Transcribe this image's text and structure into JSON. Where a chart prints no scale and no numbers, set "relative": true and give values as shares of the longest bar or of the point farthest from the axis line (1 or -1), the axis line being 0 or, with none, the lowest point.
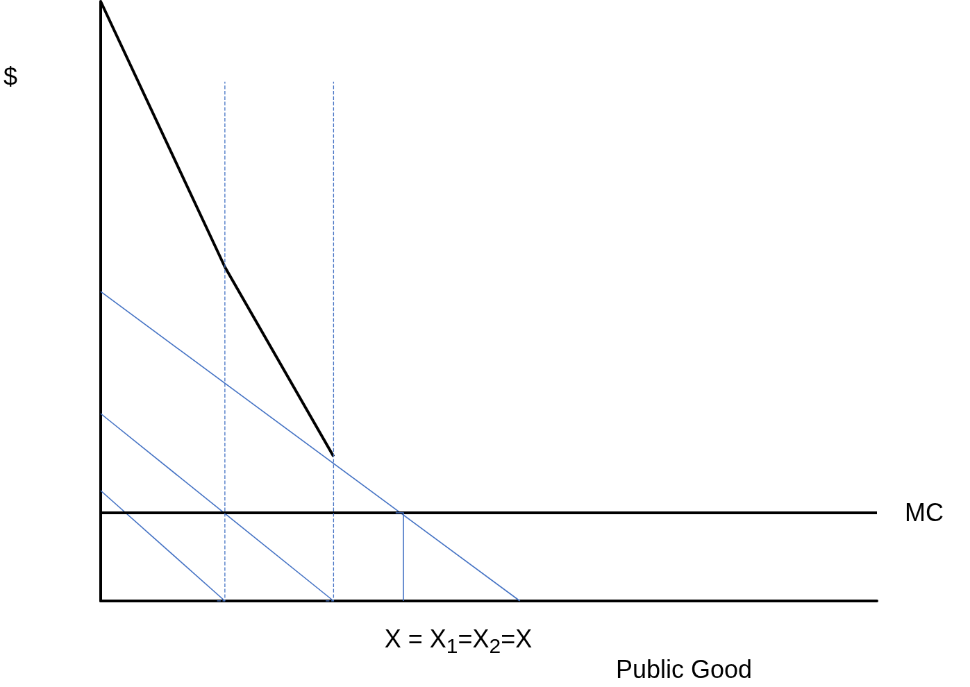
{
  "chart_data": {
    "type": "line",
    "relative": true,
    "ylabel": "$",
    "xlabel": "Public Good",
    "marker": "none",
    "grid": false,
    "legend": false,
    "tick_labels": false,
    "annotations": [
      "X = X$_{1}$=X$_{2}$=X"
    ],
    "categories": [
      null,
      null,
      null,
      null,
      null,
      null,
      null,
      null,
      null,
      null,
      null,
      null,
      null,
      null,
      null,
      null,
      null,
      null,
      null,
      null,
      null,
      null,
      null,
      null,
      null,
      null,
      null,
      null,
      null,
      null,
      null,
      null,
      null,
      null,
      null,
      null,
      null,
      null,
      null,
      null,
      null,
      null,
      null,
      null,
      null,
      null,
      null,
      null,
      null,
      null,
      null,
      null,
      null,
      null,
      null,
      null,
      null,
      null,
      null,
      null,
      null,
      null,
      null,
      null,
      null,
      null,
      null,
      null,
      null,
      null,
      null,
      null,
      null,
      null,
      null,
      null,
      null,
      null,
      null,
      null,
      null,
      null,
      null,
      null,
      null,
      null,
      null,
      null,
      null,
      null,
      null,
      null,
      null,
      null,
      null,
      null,
      null,
      null,
      null,
      null,
      null
    ],
    "series": [
      {
        "color": "#000000",
        "values": [
          1,
          null,
          null,
          null,
          null,
          null,
          null,
          null,
          null,
          null,
          null,
          null,
          null,
          null,
          null,
          null,
          0.557,
          null,
          null,
          null,
          null,
          null,
          null,
          null,
          null,
          null,
          null,
          null,
          null,
          null,
          0.241,
          null,
          null,
          null,
          null,
          null,
          null,
          null,
          null,
          null,
          null,
          null,
          null,
          null,
          null,
          null,
          null,
          null,
          null,
          null,
          null,
          null,
          null,
          null,
          null,
          null,
          null,
          null,
          null,
          null,
          null,
          null,
          null,
          null,
          null,
          null,
          null,
          null,
          null,
          null,
          null,
          null,
          null,
          null,
          null,
          null,
          null,
          null,
          null,
          null,
          null,
          null,
          null,
          null,
          null,
          null,
          null,
          null,
          null,
          null,
          null,
          null,
          null,
          null,
          null,
          null,
          null,
          null,
          null,
          null,
          null
        ]
      },
      {
        "color": "#4472c4",
        "values": [
          0.516,
          null,
          null,
          null,
          null,
          null,
          null,
          null,
          null,
          null,
          null,
          null,
          null,
          null,
          null,
          null,
          null,
          null,
          null,
          null,
          null,
          null,
          null,
          null,
          null,
          null,
          null,
          null,
          null,
          null,
          null,
          null,
          null,
          null,
          null,
          null,
          null,
          null,
          null,
          null,
          null,
          null,
          null,
          null,
          null,
          null,
          null,
          null,
          null,
          null,
          null,
          null,
          null,
          null,
          0,
          null,
          null,
          null,
          null,
          null,
          null,
          null,
          null,
          null,
          null,
          null,
          null,
          null,
          null,
          null,
          null,
          null,
          null,
          null,
          null,
          null,
          null,
          null,
          null,
          null,
          null,
          null,
          null,
          null,
          null,
          null,
          null,
          null,
          null,
          null,
          null,
          null,
          null,
          null,
          null,
          null,
          null,
          null,
          null,
          null,
          null
        ]
      },
      {
        "color": "#4472c4",
        "values": [
          0.3125,
          null,
          null,
          null,
          null,
          null,
          null,
          null,
          null,
          null,
          null,
          null,
          null,
          null,
          null,
          null,
          null,
          null,
          null,
          null,
          null,
          null,
          null,
          null,
          null,
          null,
          null,
          null,
          null,
          null,
          0,
          null,
          null,
          null,
          null,
          null,
          null,
          null,
          null,
          null,
          null,
          null,
          null,
          null,
          null,
          null,
          null,
          null,
          null,
          null,
          null,
          null,
          null,
          null,
          null,
          null,
          null,
          null,
          null,
          null,
          null,
          null,
          null,
          null,
          null,
          null,
          null,
          null,
          null,
          null,
          null,
          null,
          null,
          null,
          null,
          null,
          null,
          null,
          null,
          null,
          null,
          null,
          null,
          null,
          null,
          null,
          null,
          null,
          null,
          null,
          null,
          null,
          null,
          null,
          null,
          null,
          null,
          null,
          null,
          null,
          null
        ]
      },
      {
        "color": "#4472c4",
        "values": [
          0.184,
          null,
          null,
          null,
          null,
          null,
          null,
          null,
          null,
          null,
          null,
          null,
          null,
          null,
          null,
          null,
          0,
          null,
          null,
          null,
          null,
          null,
          null,
          null,
          null,
          null,
          null,
          null,
          null,
          null,
          null,
          null,
          null,
          null,
          null,
          null,
          null,
          null,
          null,
          null,
          null,
          null,
          null,
          null,
          null,
          null,
          null,
          null,
          null,
          null,
          null,
          null,
          null,
          null,
          null,
          null,
          null,
          null,
          null,
          null,
          null,
          null,
          null,
          null,
          null,
          null,
          null,
          null,
          null,
          null,
          null,
          null,
          null,
          null,
          null,
          null,
          null,
          null,
          null,
          null,
          null,
          null,
          null,
          null,
          null,
          null,
          null,
          null,
          null,
          null,
          null,
          null,
          null,
          null,
          null,
          null,
          null,
          null,
          null,
          null,
          null
        ]
      },
      {
        "name": "MC",
        "color": "#000000",
        "values": [
          0.147,
          null,
          null,
          null,
          null,
          null,
          null,
          null,
          null,
          null,
          null,
          null,
          null,
          null,
          null,
          null,
          null,
          null,
          null,
          null,
          null,
          null,
          null,
          null,
          null,
          null,
          null,
          null,
          null,
          null,
          null,
          null,
          null,
          null,
          null,
          null,
          null,
          null,
          null,
          null,
          null,
          null,
          null,
          null,
          null,
          null,
          null,
          null,
          null,
          null,
          null,
          null,
          null,
          null,
          null,
          null,
          null,
          null,
          null,
          null,
          null,
          null,
          null,
          null,
          null,
          null,
          null,
          null,
          null,
          null,
          null,
          null,
          null,
          null,
          null,
          null,
          null,
          null,
          null,
          null,
          null,
          null,
          null,
          null,
          null,
          null,
          null,
          null,
          null,
          null,
          null,
          null,
          null,
          null,
          null,
          null,
          null,
          null,
          null,
          null,
          0.147
        ]
      },
      {
        "type": "step",
        "color": "#4472c4",
        "line_style": "dashed",
        "values": [
          null,
          null,
          null,
          null,
          null,
          null,
          null,
          null,
          null,
          null,
          null,
          null,
          null,
          null,
          null,
          0,
          0.866,
          null,
          null,
          null,
          null,
          null,
          null,
          null,
          null,
          null,
          null,
          null,
          null,
          null,
          null,
          null,
          null,
          null,
          null,
          null,
          null,
          null,
          null,
          null,
          null,
          null,
          null,
          null,
          null,
          null,
          null,
          null,
          null,
          null,
          null,
          null,
          null,
          null,
          null,
          null,
          null,
          null,
          null,
          null,
          null,
          null,
          null,
          null,
          null,
          null,
          null,
          null,
          null,
          null,
          null,
          null,
          null,
          null,
          null,
          null,
          null,
          null,
          null,
          null,
          null,
          null,
          null,
          null,
          null,
          null,
          null,
          null,
          null,
          null,
          null,
          null,
          null,
          null,
          null,
          null,
          null,
          null,
          null,
          null,
          null
        ]
      },
      {
        "type": "step",
        "color": "#4472c4",
        "line_style": "dashed",
        "values": [
          null,
          null,
          null,
          null,
          null,
          null,
          null,
          null,
          null,
          null,
          null,
          null,
          null,
          null,
          null,
          null,
          null,
          null,
          null,
          null,
          null,
          null,
          null,
          null,
          null,
          null,
          null,
          null,
          null,
          0,
          0.866,
          null,
          null,
          null,
          null,
          null,
          null,
          null,
          null,
          null,
          null,
          null,
          null,
          null,
          null,
          null,
          null,
          null,
          null,
          null,
          null,
          null,
          null,
          null,
          null,
          null,
          null,
          null,
          null,
          null,
          null,
          null,
          null,
          null,
          null,
          null,
          null,
          null,
          null,
          null,
          null,
          null,
          null,
          null,
          null,
          null,
          null,
          null,
          null,
          null,
          null,
          null,
          null,
          null,
          null,
          null,
          null,
          null,
          null,
          null,
          null,
          null,
          null,
          null,
          null,
          null,
          null,
          null,
          null,
          null,
          null
        ]
      },
      {
        "type": "step",
        "color": "#4472c4",
        "values": [
          null,
          null,
          null,
          null,
          null,
          null,
          null,
          null,
          null,
          null,
          null,
          null,
          null,
          null,
          null,
          null,
          null,
          null,
          null,
          null,
          null,
          null,
          null,
          null,
          null,
          null,
          null,
          null,
          null,
          null,
          null,
          null,
          null,
          null,
          null,
          null,
          null,
          null,
          0.147,
          0,
          null,
          null,
          null,
          null,
          null,
          null,
          null,
          null,
          null,
          null,
          null,
          null,
          null,
          null,
          null,
          null,
          null,
          null,
          null,
          null,
          null,
          null,
          null,
          null,
          null,
          null,
          null,
          null,
          null,
          null,
          null,
          null,
          null,
          null,
          null,
          null,
          null,
          null,
          null,
          null,
          null,
          null,
          null,
          null,
          null,
          null,
          null,
          null,
          null,
          null,
          null,
          null,
          null,
          null,
          null,
          null,
          null,
          null,
          null,
          null,
          null
        ]
      }
    ]
  }
}
